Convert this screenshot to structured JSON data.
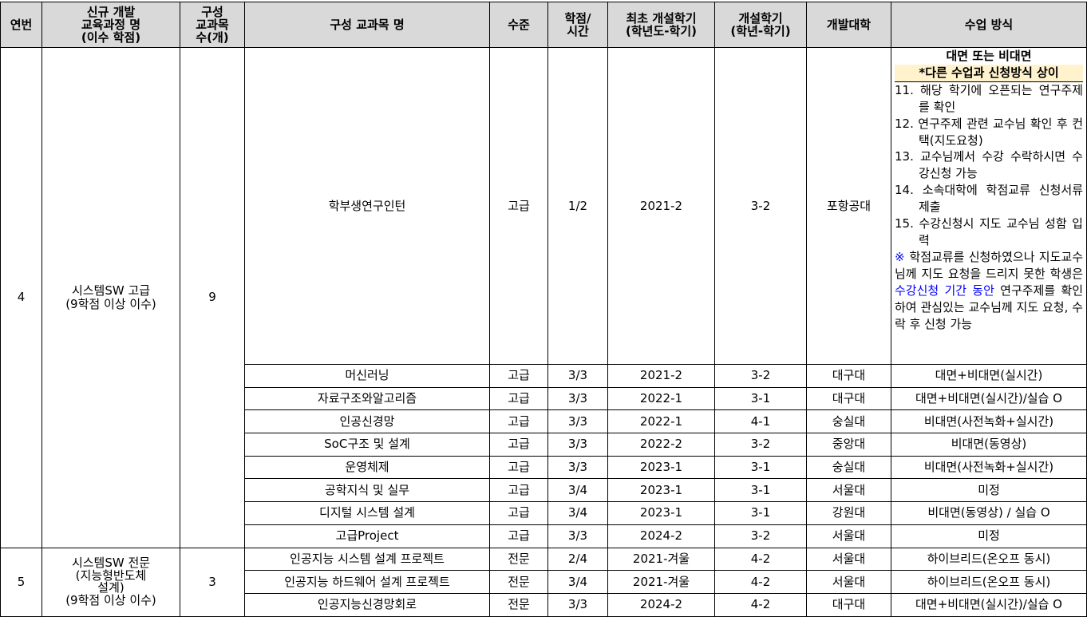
{
  "headers": [
    "연번",
    "신규 개발\n교육과정 명\n(이수 학점)",
    "구성\n교과목\n수(개)",
    "구성 교과목 명",
    "수준",
    "학점/\n시간",
    "최초 개설학기\n(학년도-학기)",
    "개설학기\n(학년-학기)",
    "개발대학",
    "수업 방식"
  ],
  "groups": [
    {
      "no": "4",
      "name": "시스템SW 고급",
      "credits": "(9학점 이상 이수)",
      "count": "9"
    },
    {
      "no": "5",
      "name": "시스템SW 전문",
      "sub": "(지능형반도체\n설계)",
      "credits": "(9학점 이상 이수)",
      "count": "3"
    }
  ],
  "rows": [
    [
      "학부생연구인턴",
      "고급",
      "1/2",
      "2021-2",
      "3-2",
      "포항공대"
    ],
    [
      "머신러닝",
      "고급",
      "3/3",
      "2021-2",
      "3-2",
      "대구대",
      "대면+비대면(실시간)"
    ],
    [
      "자료구조와알고리즘",
      "고급",
      "3/3",
      "2022-1",
      "3-1",
      "대구대",
      "대면+비대면(실시간)/실습 O"
    ],
    [
      "인공신경망",
      "고급",
      "3/3",
      "2022-1",
      "4-1",
      "숭실대",
      "비대면(사전녹화+실시간)"
    ],
    [
      "SoC구조 및 설계",
      "고급",
      "3/3",
      "2022-2",
      "3-2",
      "중앙대",
      "비대면(동영상)"
    ],
    [
      "운영체제",
      "고급",
      "3/3",
      "2023-1",
      "3-1",
      "숭실대",
      "비대면(사전녹화+실시간)"
    ],
    [
      "공학지식 및 실무",
      "고급",
      "3/4",
      "2023-1",
      "3-1",
      "서울대",
      "미정"
    ],
    [
      "디지털 시스템 설계",
      "고급",
      "3/4",
      "2023-1",
      "3-1",
      "강원대",
      "비대면(동영상) / 실습 O"
    ],
    [
      "고급Project",
      "고급",
      "3/3",
      "2024-2",
      "3-2",
      "서울대",
      "미정"
    ],
    [
      "인공지능 시스템 설계 프로젝트",
      "전문",
      "2/4",
      "2021-겨울",
      "4-2",
      "서울대",
      "하이브리드(온오프 동시)"
    ],
    [
      "인공지능 하드웨어 설계 프로젝트",
      "전문",
      "3/4",
      "2021-겨울",
      "4-2",
      "서울대",
      "하이브리드(온오프 동시)"
    ],
    [
      "인공지능신경망회로",
      "전문",
      "3/3",
      "2024-2",
      "4-2",
      "대구대",
      "대면+비대면(실시간)/실습 O"
    ]
  ],
  "note": {
    "title": "대면 또는 비대면",
    "highlight": "*다른 수업과 신청방식 상이",
    "steps": [
      "11. 해당 학기에 오픈되는 연구주제를 확인",
      "12. 연구주제 관련 교수님 확인 후 컨택(지도요청)",
      "13. 교수님께서 수강 수락하시면 수강신청 가능",
      "14. 소속대학에 학점교류 신청서류 제출",
      "15. 수강신청시 지도 교수님 성함 입력"
    ],
    "mark": "※",
    "p1": " 학점교류를 신청하였으나 지도교수님께 지도 요청을 드리지 못한 학생은 ",
    "p2": "수강신청 기간 동안",
    "p3": " 연구주제를 확인하여 관심있는 교수님께 지도 요청, 수락 후 신청 가능"
  },
  "colors": {
    "header_bg": "#d9d9d9",
    "highlight_bg": "#fff2cc",
    "link_blue": "#0000ff"
  }
}
